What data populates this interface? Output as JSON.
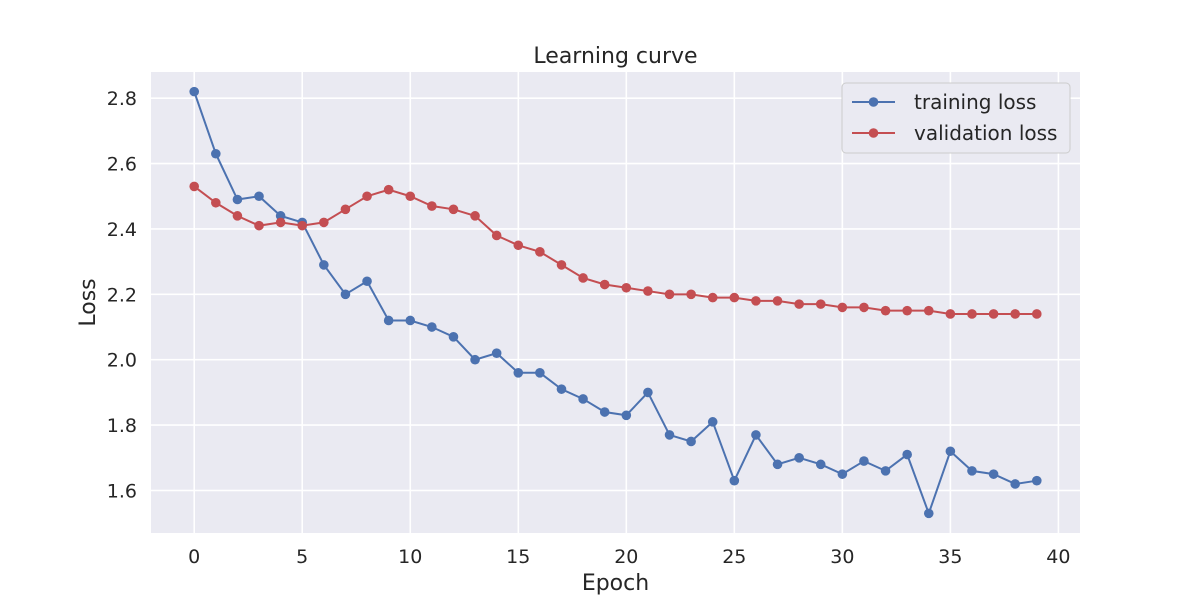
{
  "chart_data": {
    "type": "line",
    "title": "Learning curve",
    "xlabel": "Epoch",
    "ylabel": "Loss",
    "xlim": [
      -2,
      41
    ],
    "ylim": [
      1.47,
      2.88
    ],
    "xticks": [
      0,
      5,
      10,
      15,
      20,
      25,
      30,
      35,
      40
    ],
    "yticks": [
      1.6,
      1.8,
      2.0,
      2.2,
      2.4,
      2.6,
      2.8
    ],
    "ytick_labels": [
      "1.6",
      "1.8",
      "2.0",
      "2.2",
      "2.4",
      "2.6",
      "2.8"
    ],
    "grid": true,
    "legend_position": "top-right",
    "x": [
      0,
      1,
      2,
      3,
      4,
      5,
      6,
      7,
      8,
      9,
      10,
      11,
      12,
      13,
      14,
      15,
      16,
      17,
      18,
      19,
      20,
      21,
      22,
      23,
      24,
      25,
      26,
      27,
      28,
      29,
      30,
      31,
      32,
      33,
      34,
      35,
      36,
      37,
      38,
      39
    ],
    "series": [
      {
        "name": "training loss",
        "color": "#4c72b0",
        "values": [
          2.82,
          2.63,
          2.49,
          2.5,
          2.44,
          2.42,
          2.29,
          2.2,
          2.24,
          2.12,
          2.12,
          2.1,
          2.07,
          2.0,
          2.02,
          1.96,
          1.96,
          1.91,
          1.88,
          1.84,
          1.83,
          1.9,
          1.77,
          1.75,
          1.81,
          1.63,
          1.77,
          1.68,
          1.7,
          1.68,
          1.65,
          1.69,
          1.66,
          1.71,
          1.53,
          1.72,
          1.66,
          1.65,
          1.62,
          1.63
        ]
      },
      {
        "name": "validation loss",
        "color": "#c44e52",
        "values": [
          2.53,
          2.48,
          2.44,
          2.41,
          2.42,
          2.41,
          2.42,
          2.46,
          2.5,
          2.52,
          2.5,
          2.47,
          2.46,
          2.44,
          2.38,
          2.35,
          2.33,
          2.29,
          2.25,
          2.23,
          2.22,
          2.21,
          2.2,
          2.2,
          2.19,
          2.19,
          2.18,
          2.18,
          2.17,
          2.17,
          2.16,
          2.16,
          2.15,
          2.15,
          2.15,
          2.14,
          2.14,
          2.14,
          2.14,
          2.14
        ]
      }
    ]
  }
}
